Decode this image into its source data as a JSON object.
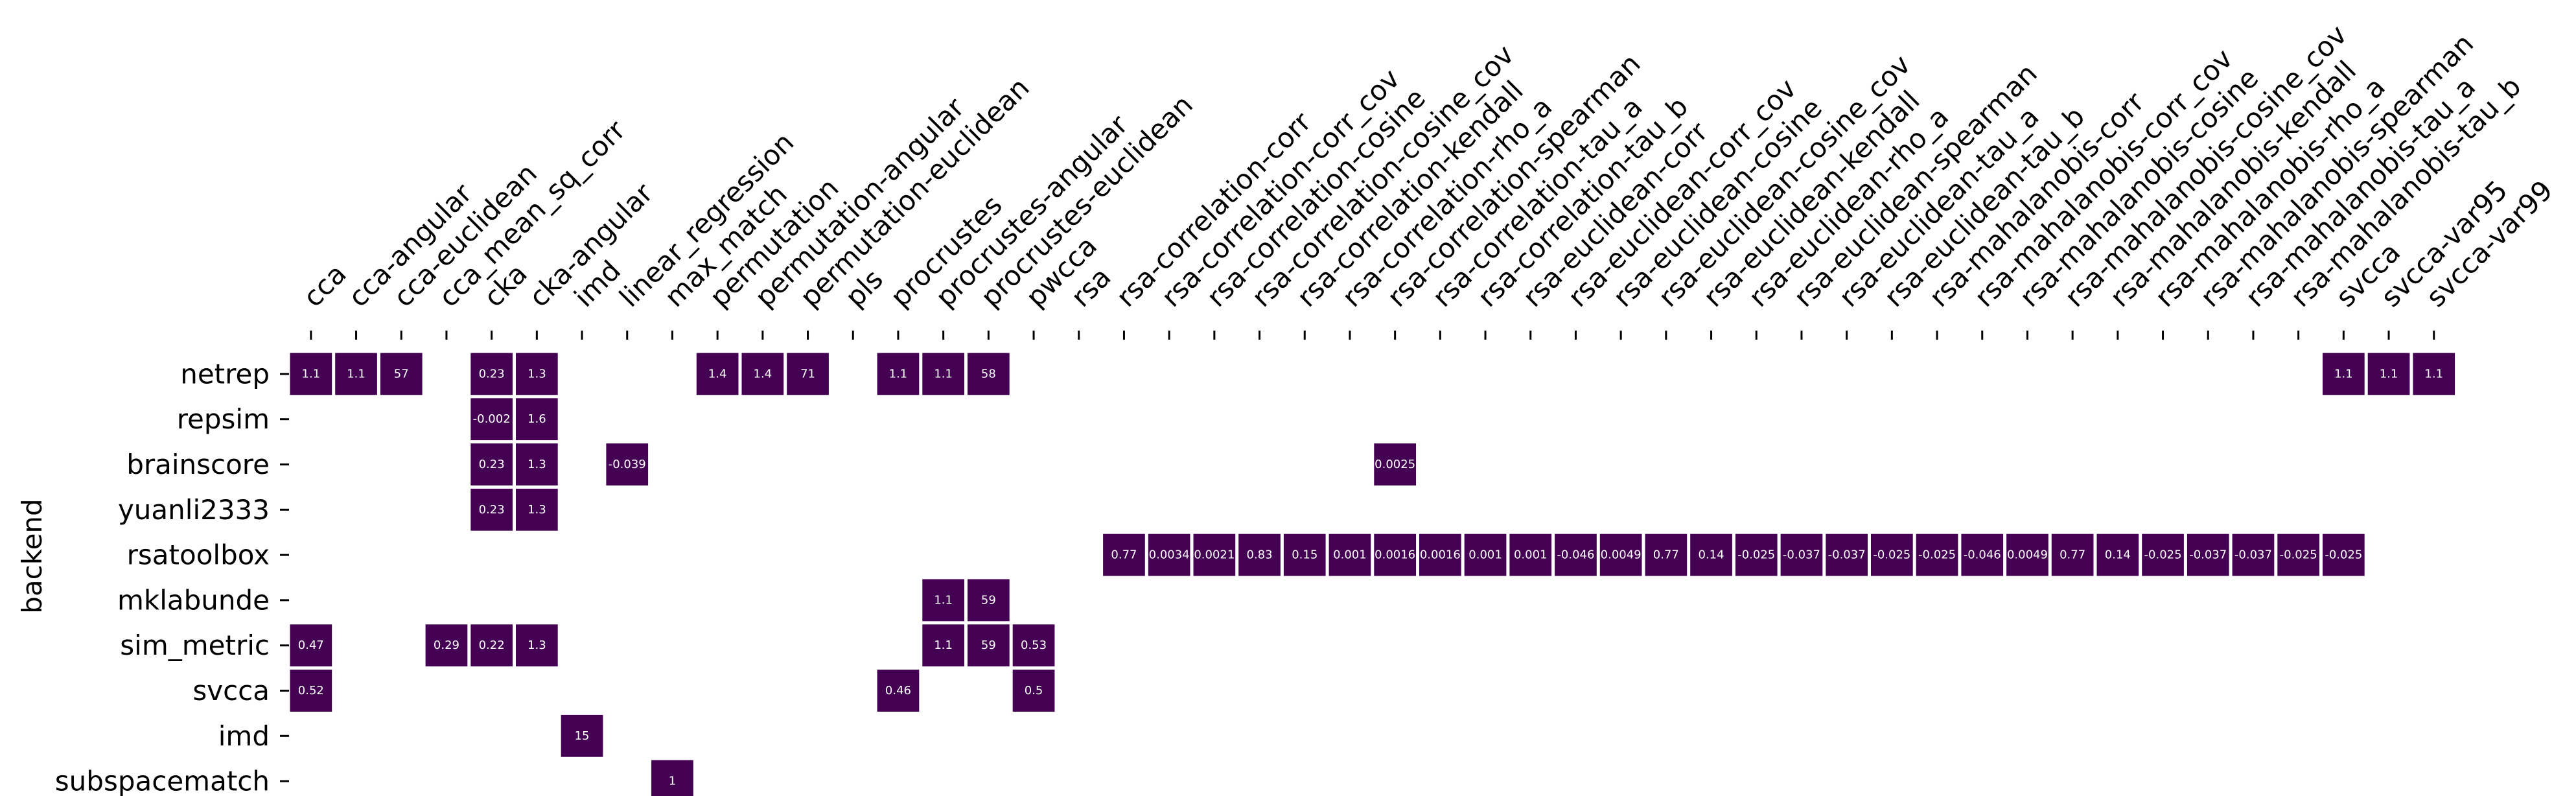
{
  "chart_data": {
    "type": "heatmap",
    "title": "",
    "xlabel": "",
    "ylabel": "backend",
    "grid": false,
    "legend": "none",
    "colors": {
      "cell": "#440154",
      "cell_text": "#ffffff",
      "background": "#ffffff"
    },
    "columns": [
      "cca",
      "cca-angular",
      "cca-euclidean",
      "cca_mean_sq_corr",
      "cka",
      "cka-angular",
      "imd",
      "linear_regression",
      "max_match",
      "permutation",
      "permutation-angular",
      "permutation-euclidean",
      "pls",
      "procrustes",
      "procrustes-angular",
      "procrustes-euclidean",
      "pwcca",
      "rsa",
      "rsa-correlation-corr",
      "rsa-correlation-corr_cov",
      "rsa-correlation-cosine",
      "rsa-correlation-cosine_cov",
      "rsa-correlation-kendall",
      "rsa-correlation-rho_a",
      "rsa-correlation-spearman",
      "rsa-correlation-tau_a",
      "rsa-correlation-tau_b",
      "rsa-euclidean-corr",
      "rsa-euclidean-corr_cov",
      "rsa-euclidean-cosine",
      "rsa-euclidean-cosine_cov",
      "rsa-euclidean-kendall",
      "rsa-euclidean-rho_a",
      "rsa-euclidean-spearman",
      "rsa-euclidean-tau_a",
      "rsa-euclidean-tau_b",
      "rsa-mahalanobis-corr",
      "rsa-mahalanobis-corr_cov",
      "rsa-mahalanobis-cosine",
      "rsa-mahalanobis-cosine_cov",
      "rsa-mahalanobis-kendall",
      "rsa-mahalanobis-rho_a",
      "rsa-mahalanobis-spearman",
      "rsa-mahalanobis-tau_a",
      "rsa-mahalanobis-tau_b",
      "svcca",
      "svcca-var95",
      "svcca-var99"
    ],
    "rows": [
      "netrep",
      "repsim",
      "brainscore",
      "yuanli2333",
      "rsatoolbox",
      "mklabunde",
      "sim_metric",
      "svcca",
      "imd",
      "subspacematch"
    ],
    "cells": [
      {
        "row": "netrep",
        "col": "cca",
        "label": "1.1"
      },
      {
        "row": "netrep",
        "col": "cca-angular",
        "label": "1.1"
      },
      {
        "row": "netrep",
        "col": "cca-euclidean",
        "label": "57"
      },
      {
        "row": "netrep",
        "col": "cka",
        "label": "0.23"
      },
      {
        "row": "netrep",
        "col": "cka-angular",
        "label": "1.3"
      },
      {
        "row": "netrep",
        "col": "permutation",
        "label": "1.4"
      },
      {
        "row": "netrep",
        "col": "permutation-angular",
        "label": "1.4"
      },
      {
        "row": "netrep",
        "col": "permutation-euclidean",
        "label": "71"
      },
      {
        "row": "netrep",
        "col": "procrustes",
        "label": "1.1"
      },
      {
        "row": "netrep",
        "col": "procrustes-angular",
        "label": "1.1"
      },
      {
        "row": "netrep",
        "col": "procrustes-euclidean",
        "label": "58"
      },
      {
        "row": "netrep",
        "col": "svcca",
        "label": "1.1"
      },
      {
        "row": "netrep",
        "col": "svcca-var95",
        "label": "1.1"
      },
      {
        "row": "netrep",
        "col": "svcca-var99",
        "label": "1.1"
      },
      {
        "row": "repsim",
        "col": "cka",
        "label": "-0.002"
      },
      {
        "row": "repsim",
        "col": "cka-angular",
        "label": "1.6"
      },
      {
        "row": "brainscore",
        "col": "cka",
        "label": "0.23"
      },
      {
        "row": "brainscore",
        "col": "cka-angular",
        "label": "1.3"
      },
      {
        "row": "brainscore",
        "col": "linear_regression",
        "label": "-0.039"
      },
      {
        "row": "brainscore",
        "col": "rsa-correlation-spearman",
        "label": "0.0025"
      },
      {
        "row": "yuanli2333",
        "col": "cka",
        "label": "0.23"
      },
      {
        "row": "yuanli2333",
        "col": "cka-angular",
        "label": "1.3"
      },
      {
        "row": "rsatoolbox",
        "col": "rsa-correlation-corr",
        "label": "0.77"
      },
      {
        "row": "rsatoolbox",
        "col": "rsa-correlation-corr_cov",
        "label": "0.0034"
      },
      {
        "row": "rsatoolbox",
        "col": "rsa-correlation-cosine",
        "label": "0.0021"
      },
      {
        "row": "rsatoolbox",
        "col": "rsa-correlation-cosine_cov",
        "label": "0.83"
      },
      {
        "row": "rsatoolbox",
        "col": "rsa-correlation-kendall",
        "label": "0.15"
      },
      {
        "row": "rsatoolbox",
        "col": "rsa-correlation-rho_a",
        "label": "0.001"
      },
      {
        "row": "rsatoolbox",
        "col": "rsa-correlation-spearman",
        "label": "0.0016"
      },
      {
        "row": "rsatoolbox",
        "col": "rsa-correlation-tau_a",
        "label": "0.0016"
      },
      {
        "row": "rsatoolbox",
        "col": "rsa-correlation-tau_b",
        "label": "0.001"
      },
      {
        "row": "rsatoolbox",
        "col": "rsa-euclidean-corr",
        "label": "0.001"
      },
      {
        "row": "rsatoolbox",
        "col": "rsa-euclidean-corr_cov",
        "label": "-0.046"
      },
      {
        "row": "rsatoolbox",
        "col": "rsa-euclidean-cosine",
        "label": "0.0049"
      },
      {
        "row": "rsatoolbox",
        "col": "rsa-euclidean-cosine_cov",
        "label": "0.77"
      },
      {
        "row": "rsatoolbox",
        "col": "rsa-euclidean-kendall",
        "label": "0.14"
      },
      {
        "row": "rsatoolbox",
        "col": "rsa-euclidean-rho_a",
        "label": "-0.025"
      },
      {
        "row": "rsatoolbox",
        "col": "rsa-euclidean-spearman",
        "label": "-0.037"
      },
      {
        "row": "rsatoolbox",
        "col": "rsa-euclidean-tau_a",
        "label": "-0.037"
      },
      {
        "row": "rsatoolbox",
        "col": "rsa-euclidean-tau_b",
        "label": "-0.025"
      },
      {
        "row": "rsatoolbox",
        "col": "rsa-mahalanobis-corr",
        "label": "-0.025"
      },
      {
        "row": "rsatoolbox",
        "col": "rsa-mahalanobis-corr_cov",
        "label": "-0.046"
      },
      {
        "row": "rsatoolbox",
        "col": "rsa-mahalanobis-cosine",
        "label": "0.0049"
      },
      {
        "row": "rsatoolbox",
        "col": "rsa-mahalanobis-cosine_cov",
        "label": "0.77"
      },
      {
        "row": "rsatoolbox",
        "col": "rsa-mahalanobis-kendall",
        "label": "0.14"
      },
      {
        "row": "rsatoolbox",
        "col": "rsa-mahalanobis-rho_a",
        "label": "-0.025"
      },
      {
        "row": "rsatoolbox",
        "col": "rsa-mahalanobis-spearman",
        "label": "-0.037"
      },
      {
        "row": "rsatoolbox",
        "col": "rsa-mahalanobis-tau_a",
        "label": "-0.037"
      },
      {
        "row": "rsatoolbox",
        "col": "rsa-mahalanobis-tau_b",
        "label": "-0.025"
      },
      {
        "row": "rsatoolbox",
        "col": "svcca",
        "label": "-0.025"
      },
      {
        "row": "mklabunde",
        "col": "procrustes-angular",
        "label": "1.1"
      },
      {
        "row": "mklabunde",
        "col": "procrustes-euclidean",
        "label": "59"
      },
      {
        "row": "sim_metric",
        "col": "cca",
        "label": "0.47"
      },
      {
        "row": "sim_metric",
        "col": "cca_mean_sq_corr",
        "label": "0.29"
      },
      {
        "row": "sim_metric",
        "col": "cka",
        "label": "0.22"
      },
      {
        "row": "sim_metric",
        "col": "cka-angular",
        "label": "1.3"
      },
      {
        "row": "sim_metric",
        "col": "procrustes-angular",
        "label": "1.1"
      },
      {
        "row": "sim_metric",
        "col": "procrustes-euclidean",
        "label": "59"
      },
      {
        "row": "sim_metric",
        "col": "pwcca",
        "label": "0.53"
      },
      {
        "row": "svcca",
        "col": "cca",
        "label": "0.52"
      },
      {
        "row": "svcca",
        "col": "procrustes",
        "label": "0.46"
      },
      {
        "row": "svcca",
        "col": "pwcca",
        "label": "0.5"
      },
      {
        "row": "imd",
        "col": "imd",
        "label": "15"
      },
      {
        "row": "subspacematch",
        "col": "max_match",
        "label": "1"
      }
    ]
  }
}
